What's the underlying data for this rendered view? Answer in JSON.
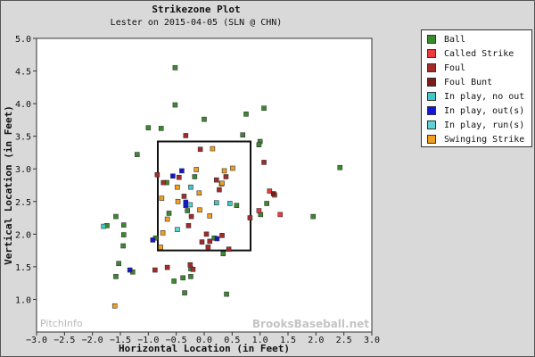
{
  "title": "Strikezone Plot",
  "subtitle": "Lester on 2015-04-05 (SLN @ CHN)",
  "watermark_left": "PitchInfo",
  "watermark_right": "BrooksBaseball.net",
  "colors": {
    "Ball": "#3a8a2e",
    "Called Strike": "#ee3a3a",
    "Foul": "#a52a2a",
    "Foul Bunt": "#7b1c1c",
    "In play, no out": "#40c8c8",
    "In play, out(s)": "#1414d8",
    "In play, run(s)": "#5fd3d3",
    "Swinging Strike": "#f0a020"
  },
  "legend": [
    {
      "label": "Ball",
      "color": "#3a8a2e"
    },
    {
      "label": "Called Strike",
      "color": "#ee3a3a"
    },
    {
      "label": "Foul",
      "color": "#a52a2a"
    },
    {
      "label": "Foul Bunt",
      "color": "#7b1c1c"
    },
    {
      "label": "In play, no out",
      "color": "#40c8c8"
    },
    {
      "label": "In play, out(s)",
      "color": "#1414d8"
    },
    {
      "label": "In play, run(s)",
      "color": "#5fd3d3"
    },
    {
      "label": "Swinging Strike",
      "color": "#f0a020"
    }
  ],
  "chart_data": {
    "type": "scatter",
    "title": "Strikezone Plot",
    "subtitle": "Lester on 2015-04-05 (SLN @ CHN)",
    "xlabel": "Horizontal Location (in Feet)",
    "ylabel": "Vertical Location (in Feet)",
    "xlim": [
      -3.0,
      3.0
    ],
    "ylim": [
      0.5,
      5.0
    ],
    "xticks": [
      "-3.0",
      "-2.5",
      "-2.0",
      "-1.5",
      "-1.0",
      "-0.5",
      "0.0",
      "0.5",
      "1.0",
      "1.5",
      "2.0",
      "2.5",
      "3.0"
    ],
    "yticks": [
      "1.0",
      "1.5",
      "2.0",
      "2.5",
      "3.0",
      "3.5",
      "4.0",
      "4.5",
      "5.0"
    ],
    "strike_zone": {
      "x": [
        -0.83,
        0.83
      ],
      "y": [
        1.75,
        3.42
      ]
    },
    "grid": false,
    "legend_position": "right",
    "series": [
      {
        "name": "Ball",
        "points": [
          [
            -0.52,
            4.55
          ],
          [
            -0.52,
            3.98
          ],
          [
            -1.0,
            3.63
          ],
          [
            -0.77,
            3.62
          ],
          [
            0.0,
            3.76
          ],
          [
            0.75,
            3.84
          ],
          [
            0.69,
            3.52
          ],
          [
            1.07,
            3.93
          ],
          [
            1.0,
            3.42
          ],
          [
            0.98,
            3.37
          ],
          [
            -1.2,
            3.22
          ],
          [
            2.43,
            3.02
          ],
          [
            -1.58,
            2.27
          ],
          [
            -1.74,
            2.13
          ],
          [
            -1.44,
            2.14
          ],
          [
            -1.44,
            1.99
          ],
          [
            -1.45,
            1.82
          ],
          [
            -1.53,
            1.55
          ],
          [
            -1.58,
            1.35
          ],
          [
            -1.28,
            1.42
          ],
          [
            -0.54,
            1.28
          ],
          [
            -0.38,
            1.33
          ],
          [
            -0.24,
            1.35
          ],
          [
            -0.35,
            1.1
          ],
          [
            -0.24,
            1.47
          ],
          [
            0.4,
            1.08
          ],
          [
            0.34,
            1.7
          ],
          [
            1.12,
            2.47
          ],
          [
            1.01,
            2.3
          ],
          [
            1.95,
            2.27
          ],
          [
            0.58,
            2.44
          ],
          [
            -0.87,
            1.94
          ],
          [
            -0.67,
            2.79
          ],
          [
            -0.63,
            2.32
          ],
          [
            -0.17,
            2.88
          ],
          [
            0.18,
            1.94
          ],
          [
            -0.3,
            2.36
          ]
        ]
      },
      {
        "name": "Called Strike",
        "points": [
          [
            1.17,
            2.66
          ],
          [
            1.26,
            2.6
          ],
          [
            1.36,
            2.3
          ],
          [
            0.98,
            2.36
          ]
        ]
      },
      {
        "name": "Foul",
        "points": [
          [
            -0.33,
            3.51
          ],
          [
            -0.07,
            3.3
          ],
          [
            1.07,
            3.1
          ],
          [
            -0.84,
            2.91
          ],
          [
            -0.73,
            2.79
          ],
          [
            -0.45,
            2.87
          ],
          [
            0.22,
            2.83
          ],
          [
            0.39,
            2.88
          ],
          [
            0.27,
            2.68
          ],
          [
            0.32,
            1.98
          ],
          [
            0.82,
            2.25
          ],
          [
            -0.36,
            2.58
          ],
          [
            -0.23,
            2.27
          ],
          [
            -0.28,
            2.13
          ],
          [
            0.04,
            2.0
          ],
          [
            0.1,
            1.89
          ],
          [
            0.44,
            1.77
          ],
          [
            0.07,
            1.8
          ],
          [
            -0.04,
            1.88
          ],
          [
            -0.25,
            1.53
          ],
          [
            -0.66,
            1.49
          ],
          [
            -0.88,
            1.45
          ],
          [
            -0.2,
            1.46
          ]
        ]
      },
      {
        "name": "Foul Bunt",
        "points": [
          [
            1.24,
            2.62
          ],
          [
            -0.3,
            2.45
          ]
        ]
      },
      {
        "name": "In play, no out",
        "points": [
          [
            -1.8,
            2.12
          ],
          [
            -0.24,
            2.72
          ],
          [
            0.22,
            2.48
          ],
          [
            0.46,
            2.47
          ]
        ]
      },
      {
        "name": "In play, out(s)",
        "points": [
          [
            -0.4,
            2.97
          ],
          [
            -0.56,
            2.89
          ],
          [
            -0.33,
            2.44
          ],
          [
            -0.33,
            2.49
          ],
          [
            -0.92,
            1.91
          ],
          [
            0.23,
            1.93
          ],
          [
            -1.33,
            1.45
          ]
        ]
      },
      {
        "name": "In play, run(s)",
        "points": [
          [
            -0.25,
            2.45
          ],
          [
            -0.48,
            2.07
          ]
        ]
      },
      {
        "name": "Swinging Strike",
        "points": [
          [
            0.15,
            3.31
          ],
          [
            0.51,
            3.01
          ],
          [
            0.36,
            2.97
          ],
          [
            -0.14,
            2.99
          ],
          [
            -0.48,
            2.72
          ],
          [
            -0.09,
            2.63
          ],
          [
            0.31,
            2.77
          ],
          [
            -0.76,
            2.55
          ],
          [
            -0.66,
            2.23
          ],
          [
            0.1,
            2.28
          ],
          [
            -0.08,
            2.37
          ],
          [
            -0.74,
            2.02
          ],
          [
            -0.78,
            1.8
          ],
          [
            0.32,
            2.78
          ],
          [
            -0.47,
            2.5
          ],
          [
            -1.6,
            0.9
          ]
        ]
      }
    ]
  }
}
